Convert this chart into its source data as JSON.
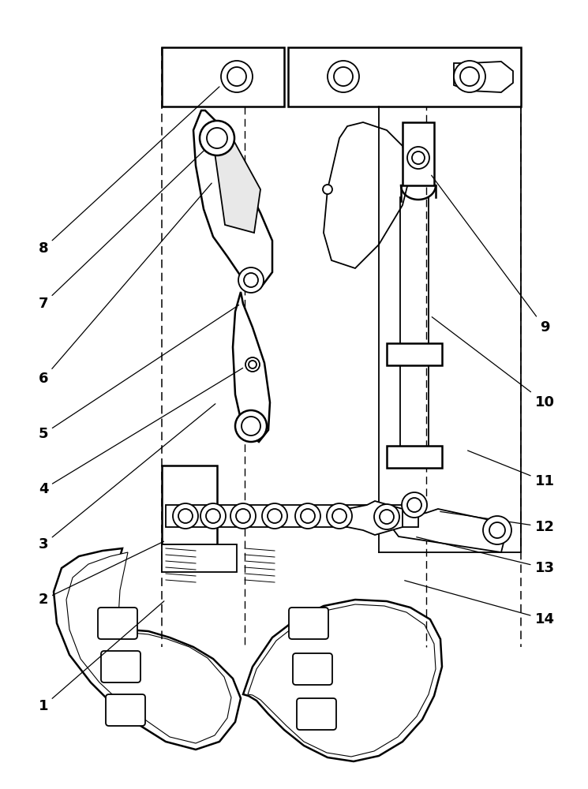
{
  "bg_color": "#ffffff",
  "line_color": "#000000",
  "lw": 1.3,
  "lw_thick": 1.8,
  "labels": {
    "1": [
      55,
      895,
      210,
      760
    ],
    "2": [
      55,
      760,
      210,
      685
    ],
    "3": [
      55,
      690,
      275,
      510
    ],
    "4": [
      55,
      620,
      310,
      465
    ],
    "5": [
      55,
      550,
      305,
      385
    ],
    "6": [
      55,
      480,
      270,
      230
    ],
    "7": [
      55,
      385,
      275,
      175
    ],
    "8": [
      55,
      315,
      280,
      108
    ],
    "9": [
      690,
      415,
      545,
      220
    ],
    "10": [
      690,
      510,
      545,
      400
    ],
    "11": [
      690,
      610,
      590,
      570
    ],
    "12": [
      690,
      668,
      555,
      648
    ],
    "13": [
      690,
      720,
      525,
      680
    ],
    "14": [
      690,
      785,
      510,
      735
    ]
  }
}
